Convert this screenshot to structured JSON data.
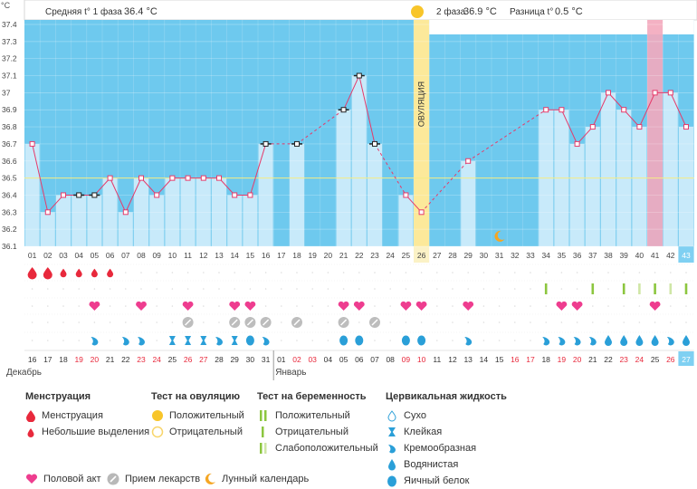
{
  "header": {
    "unit": "°C",
    "phase1_label": "Средняя t° 1 фаза",
    "phase1_value": "36.4 °C",
    "phase2_label": "2 фаза",
    "phase2_value": "36.9 °C",
    "diff_label": "Разница t°",
    "diff_value": "0.5 °C"
  },
  "ovulation_label": "ОВУЛЯЦИЯ",
  "cycle_days_total": 43,
  "luteal_days": [
    "01",
    "02",
    "03",
    "04",
    "05",
    "06",
    "07",
    "08",
    "09",
    "10",
    "11",
    "12",
    "13",
    "14",
    "15",
    "16",
    "17"
  ],
  "chart_data": {
    "type": "line",
    "ylim": [
      36.1,
      37.4
    ],
    "yticks": [
      "36.1",
      "36.2",
      "36.3",
      "36.4",
      "36.5",
      "36.6",
      "36.7",
      "36.8",
      "36.9",
      "37",
      "37.1",
      "37.2",
      "37.3",
      "37.4"
    ],
    "coverline": 36.5,
    "categories": [
      "01",
      "02",
      "03",
      "04",
      "05",
      "06",
      "07",
      "08",
      "09",
      "10",
      "11",
      "12",
      "13",
      "14",
      "15",
      "16",
      "17",
      "18",
      "19",
      "20",
      "21",
      "22",
      "23",
      "24",
      "25",
      "26",
      "27",
      "28",
      "29",
      "30",
      "31",
      "32",
      "33",
      "34",
      "35",
      "36",
      "37",
      "38",
      "39",
      "40",
      "41",
      "42",
      "43"
    ],
    "series": [
      {
        "values": [
          36.7,
          36.3,
          36.4,
          36.4,
          36.4,
          36.5,
          36.3,
          36.5,
          36.4,
          36.5,
          36.5,
          36.5,
          36.5,
          36.4,
          36.4,
          36.7,
          null,
          36.7,
          null,
          null,
          36.9,
          37.1,
          36.7,
          null,
          36.4,
          36.3,
          null,
          null,
          36.6,
          null,
          null,
          null,
          null,
          36.9,
          36.9,
          36.7,
          36.8,
          37.0,
          36.9,
          36.8,
          37.0,
          37.0,
          36.8
        ]
      }
    ],
    "ovulation_day": "26",
    "highlight_day": "41",
    "moon_day": "31"
  },
  "calendar": {
    "dates": [
      "16",
      "17",
      "18",
      "19",
      "20",
      "21",
      "22",
      "23",
      "24",
      "25",
      "26",
      "27",
      "28",
      "29",
      "30",
      "31",
      "01",
      "02",
      "03",
      "04",
      "05",
      "06",
      "07",
      "08",
      "09",
      "10",
      "11",
      "12",
      "13",
      "14",
      "15",
      "16",
      "17",
      "18",
      "19",
      "20",
      "21",
      "22",
      "23",
      "24",
      "25",
      "26",
      "27"
    ],
    "month1": "Декабрь",
    "month2": "Январь"
  },
  "markers": {
    "menstruation": [
      "big",
      "big",
      "small",
      "small",
      "small",
      "small",
      null,
      null,
      null,
      null,
      null,
      null,
      null,
      null,
      null,
      null,
      null,
      null,
      null,
      null,
      null,
      null,
      null,
      null,
      null,
      null,
      null,
      null,
      null,
      null,
      null,
      null,
      null,
      null,
      null,
      null,
      null,
      null,
      null,
      null,
      null,
      null,
      null
    ],
    "intercourse_days": [
      5,
      8,
      11,
      14,
      15,
      21,
      22,
      25,
      26,
      29,
      35,
      36,
      41
    ],
    "meds_days": [
      11,
      14,
      15,
      16,
      18,
      21,
      23
    ],
    "ov_test_green_days": [
      34,
      37,
      39,
      40,
      41,
      42,
      43
    ],
    "ov_test_light_days": [
      40,
      42
    ],
    "fluid": {
      "5": "creamy",
      "7": "creamy",
      "8": "creamy",
      "10": "sticky",
      "11": "sticky",
      "12": "sticky",
      "13": "creamy",
      "14": "sticky",
      "15": "eggwhite",
      "16": "creamy",
      "21": "eggwhite",
      "22": "eggwhite",
      "25": "eggwhite",
      "26": "eggwhite",
      "29": "creamy",
      "34": "creamy",
      "35": "creamy",
      "36": "creamy",
      "37": "creamy",
      "38": "watery",
      "39": "watery",
      "40": "watery",
      "41": "watery",
      "42": "creamy",
      "43": "watery"
    }
  },
  "legend": {
    "menstruation": {
      "title": "Менструация",
      "items": [
        "Менструация",
        "Небольшие выделения"
      ]
    },
    "ovulation_test": {
      "title": "Тест на овуляцию",
      "items": [
        "Положительный",
        "Отрицательный"
      ]
    },
    "pregnancy_test": {
      "title": "Тест на беременность",
      "items": [
        "Положительный",
        "Отрицательный",
        "Слабоположительный"
      ]
    },
    "cervical_fluid": {
      "title": "Цервикальная жидкость",
      "items": [
        "Сухо",
        "Клейкая",
        "Кремообразная",
        "Водянистая",
        "Яичный белок"
      ]
    },
    "bottom": [
      "Половой акт",
      "Прием лекарств",
      "Лунный календарь"
    ]
  },
  "colors": {
    "bg_blue": "#6ec9ee",
    "bar_light": "#c8eafa",
    "line": "#e63a6a",
    "ovulation": "#fce99a",
    "pink_highlight": "#f3a8bd",
    "menstruation": "#e8293c",
    "heart": "#ee3d8f",
    "green": "#8cc63f",
    "fluid_blue": "#2a9fd8"
  }
}
